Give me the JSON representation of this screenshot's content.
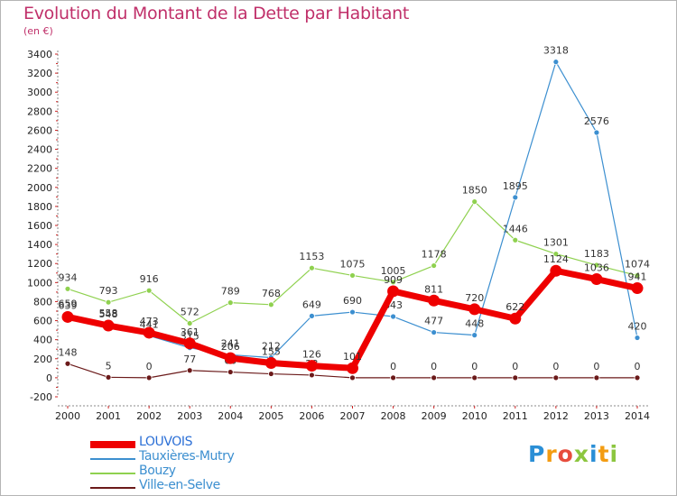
{
  "header": {
    "title": "Evolution du Montant de la Dette par Habitant",
    "subtitle": "(en €)"
  },
  "logo": {
    "text": "Proxiti",
    "letter_colors": [
      "#2b8fd6",
      "#f39c12",
      "#e74c3c",
      "#8cc63f",
      "#2b8fd6",
      "#f39c12",
      "#8cc63f"
    ]
  },
  "chart_data": {
    "type": "line",
    "x": [
      "2000",
      "2001",
      "2002",
      "2003",
      "2004",
      "2005",
      "2006",
      "2007",
      "2008",
      "2009",
      "2010",
      "2011",
      "2012",
      "2013",
      "2014"
    ],
    "ylim": [
      -200,
      3400
    ],
    "yticks": [
      -200,
      0,
      200,
      400,
      600,
      800,
      1000,
      1200,
      1400,
      1600,
      1800,
      2000,
      2200,
      2400,
      2600,
      2800,
      3000,
      3200,
      3400
    ],
    "grid": false,
    "legend_position": "bottom-left",
    "series": [
      {
        "name": "Bouzy",
        "color": "#8fd14f",
        "values": [
          934,
          793,
          916,
          572,
          789,
          768,
          1153,
          1075,
          1005,
          1178,
          1850,
          1446,
          1301,
          1183,
          1074
        ]
      },
      {
        "name": "Tauxières-Mutry",
        "color": "#3c8fd0",
        "values": [
          659,
          558,
          441,
          315,
          241,
          212,
          649,
          690,
          643,
          477,
          448,
          1895,
          3318,
          2576,
          420
        ]
      },
      {
        "name": "Ville-en-Selve",
        "color": "#6b1a1a",
        "values": [
          148,
          5,
          0,
          77,
          60,
          41,
          28,
          0,
          0,
          0,
          0,
          0,
          0,
          0,
          0
        ]
      },
      {
        "name": "LOUVOIS",
        "color": "#ee0000",
        "values": [
          639,
          548,
          473,
          361,
          206,
          155,
          126,
          101,
          909,
          811,
          720,
          622,
          1124,
          1036,
          941
        ]
      }
    ]
  }
}
